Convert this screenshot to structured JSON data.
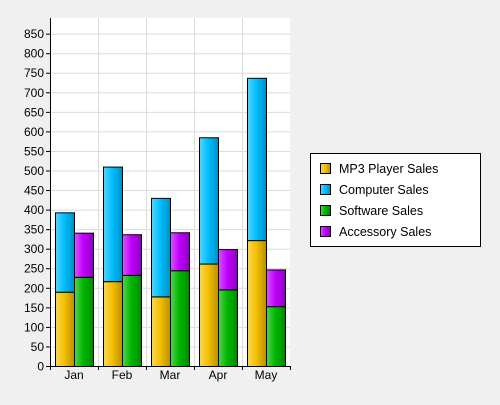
{
  "chart_data": {
    "type": "bar",
    "stacked": true,
    "categories": [
      "Jan",
      "Feb",
      "Mar",
      "Apr",
      "May"
    ],
    "stack_groups": [
      {
        "series": [
          {
            "name": "MP3 Player Sales",
            "values": [
              190,
              217,
              178,
              262,
              322
            ],
            "color": "#f5c000"
          },
          {
            "name": "Computer Sales",
            "values": [
              203,
              293,
              252,
              323,
              415
            ],
            "color": "#00bfff"
          }
        ]
      },
      {
        "series": [
          {
            "name": "Software Sales",
            "values": [
              228,
              233,
              245,
              196,
              153
            ],
            "color": "#00b800"
          },
          {
            "name": "Accessory Sales",
            "values": [
              113,
              104,
              97,
              103,
              94
            ],
            "color": "#c000ff"
          }
        ]
      }
    ],
    "legend": {
      "placement": "right",
      "entries": [
        "MP3 Player Sales",
        "Computer Sales",
        "Software Sales",
        "Accessory Sales"
      ]
    },
    "ylim": [
      0,
      890
    ],
    "yticks": [
      "0",
      "50",
      "100",
      "150",
      "200",
      "250",
      "300",
      "350",
      "400",
      "450",
      "500",
      "550",
      "600",
      "650",
      "700",
      "750",
      "800",
      "850"
    ],
    "grid": true,
    "title": "",
    "xlabel": "",
    "ylabel": "",
    "colors": {
      "background": "#f0f0f0",
      "plot_background": "#ffffff",
      "grid": "#dcdcdc",
      "axis": "#000000",
      "bar_outline": "#000000"
    }
  }
}
